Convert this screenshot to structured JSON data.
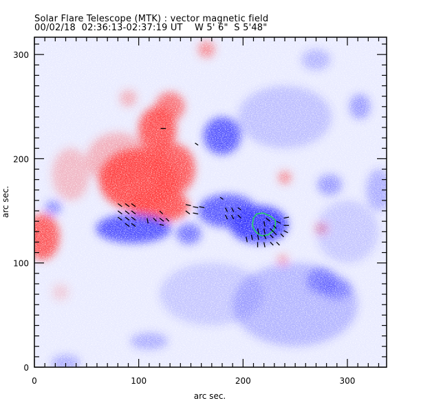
{
  "header": {
    "title": "Solar Flare Telescope (MTK) : vector magnetic field",
    "subtitle": "00/02/18  02:36:13-02:37:19 UT    W 5' 6\"  S 5'48\""
  },
  "colors": {
    "positive": "#ff4040",
    "negative": "#3a3aff",
    "contour": "#22dd55",
    "axes": "#000000",
    "background": "#ffffff"
  },
  "chart_data": {
    "type": "heatmap",
    "title": "Solar Flare Telescope (MTK) : vector magnetic field",
    "subtitle": "00/02/18  02:36:13-02:37:19 UT    W 5' 6\"  S 5'48\"",
    "xlabel": "arc sec.",
    "ylabel": "arc sec.",
    "xlim": [
      0,
      337.6
    ],
    "ylim": [
      0,
      316.6
    ],
    "xticks": [
      0,
      100,
      200,
      300
    ],
    "yticks": [
      0,
      100,
      200,
      300
    ],
    "xtick_labels": [
      "0",
      "100",
      "200",
      "300"
    ],
    "ytick_labels": [
      "0",
      "100",
      "200",
      "300"
    ],
    "minor_tick_step": 10,
    "grid": false,
    "legend": "none",
    "polarity_regions": [
      {
        "polarity": "positive",
        "x": 100,
        "y": 180,
        "rx": 38,
        "ry": 30,
        "strength": 0.95
      },
      {
        "polarity": "positive",
        "x": 120,
        "y": 155,
        "rx": 28,
        "ry": 16,
        "strength": 0.9
      },
      {
        "polarity": "positive",
        "x": 132,
        "y": 190,
        "rx": 22,
        "ry": 25,
        "strength": 0.85
      },
      {
        "polarity": "positive",
        "x": 118,
        "y": 228,
        "rx": 18,
        "ry": 22,
        "strength": 0.9
      },
      {
        "polarity": "positive",
        "x": 130,
        "y": 250,
        "rx": 14,
        "ry": 14,
        "strength": 0.7
      },
      {
        "polarity": "positive",
        "x": 80,
        "y": 200,
        "rx": 30,
        "ry": 25,
        "strength": 0.35
      },
      {
        "polarity": "positive",
        "x": 8,
        "y": 125,
        "rx": 16,
        "ry": 22,
        "strength": 0.85
      },
      {
        "polarity": "positive",
        "x": 35,
        "y": 185,
        "rx": 18,
        "ry": 25,
        "strength": 0.3
      },
      {
        "polarity": "positive",
        "x": 165,
        "y": 305,
        "rx": 8,
        "ry": 8,
        "strength": 0.55
      },
      {
        "polarity": "positive",
        "x": 90,
        "y": 258,
        "rx": 8,
        "ry": 8,
        "strength": 0.35
      },
      {
        "polarity": "positive",
        "x": 240,
        "y": 182,
        "rx": 6,
        "ry": 6,
        "strength": 0.6
      },
      {
        "polarity": "positive",
        "x": 275,
        "y": 133,
        "rx": 6,
        "ry": 5,
        "strength": 0.55
      },
      {
        "polarity": "positive",
        "x": 238,
        "y": 103,
        "rx": 5,
        "ry": 5,
        "strength": 0.45
      },
      {
        "polarity": "positive",
        "x": 25,
        "y": 72,
        "rx": 8,
        "ry": 8,
        "strength": 0.2
      },
      {
        "polarity": "negative",
        "x": 215,
        "y": 137,
        "rx": 28,
        "ry": 18,
        "strength": 0.98
      },
      {
        "polarity": "negative",
        "x": 185,
        "y": 150,
        "rx": 28,
        "ry": 16,
        "strength": 0.8
      },
      {
        "polarity": "negative",
        "x": 180,
        "y": 222,
        "rx": 18,
        "ry": 18,
        "strength": 0.8
      },
      {
        "polarity": "negative",
        "x": 95,
        "y": 133,
        "rx": 36,
        "ry": 14,
        "strength": 0.85
      },
      {
        "polarity": "negative",
        "x": 148,
        "y": 128,
        "rx": 12,
        "ry": 10,
        "strength": 0.65
      },
      {
        "polarity": "negative",
        "x": 18,
        "y": 153,
        "rx": 8,
        "ry": 7,
        "strength": 0.5
      },
      {
        "polarity": "negative",
        "x": 283,
        "y": 175,
        "rx": 12,
        "ry": 10,
        "strength": 0.45
      },
      {
        "polarity": "negative",
        "x": 312,
        "y": 250,
        "rx": 10,
        "ry": 12,
        "strength": 0.45
      },
      {
        "polarity": "negative",
        "x": 275,
        "y": 83,
        "rx": 14,
        "ry": 12,
        "strength": 0.5
      },
      {
        "polarity": "negative",
        "x": 290,
        "y": 75,
        "rx": 14,
        "ry": 10,
        "strength": 0.45
      },
      {
        "polarity": "negative",
        "x": 240,
        "y": 240,
        "rx": 45,
        "ry": 30,
        "strength": 0.25
      },
      {
        "polarity": "negative",
        "x": 250,
        "y": 60,
        "rx": 60,
        "ry": 40,
        "strength": 0.3
      },
      {
        "polarity": "negative",
        "x": 170,
        "y": 70,
        "rx": 50,
        "ry": 30,
        "strength": 0.2
      },
      {
        "polarity": "negative",
        "x": 110,
        "y": 25,
        "rx": 18,
        "ry": 8,
        "strength": 0.35
      },
      {
        "polarity": "negative",
        "x": 30,
        "y": 4,
        "rx": 14,
        "ry": 8,
        "strength": 0.35
      },
      {
        "polarity": "negative",
        "x": 270,
        "y": 295,
        "rx": 14,
        "ry": 10,
        "strength": 0.3
      },
      {
        "polarity": "negative",
        "x": 330,
        "y": 170,
        "rx": 12,
        "ry": 20,
        "strength": 0.35
      },
      {
        "polarity": "negative",
        "x": 300,
        "y": 130,
        "rx": 30,
        "ry": 30,
        "strength": 0.2
      }
    ],
    "contour": [
      [
        209,
        137
      ],
      [
        210,
        143
      ],
      [
        213,
        147
      ],
      [
        219,
        148
      ],
      [
        226,
        145
      ],
      [
        231,
        141
      ],
      [
        231,
        136
      ],
      [
        229,
        131
      ],
      [
        224,
        127
      ],
      [
        218,
        126
      ],
      [
        213,
        129
      ],
      [
        210,
        133
      ],
      [
        209,
        137
      ]
    ],
    "vectors": [
      {
        "x": 80,
        "y": 157,
        "dx": 4,
        "dy": -3
      },
      {
        "x": 87,
        "y": 157,
        "dx": 4,
        "dy": -3
      },
      {
        "x": 93,
        "y": 157,
        "dx": 4,
        "dy": -3
      },
      {
        "x": 80,
        "y": 150,
        "dx": 4,
        "dy": -3
      },
      {
        "x": 87,
        "y": 150,
        "dx": 4,
        "dy": -3
      },
      {
        "x": 93,
        "y": 150,
        "dx": 4,
        "dy": -3
      },
      {
        "x": 80,
        "y": 144,
        "dx": 4,
        "dy": -3
      },
      {
        "x": 87,
        "y": 144,
        "dx": 4,
        "dy": -3
      },
      {
        "x": 93,
        "y": 144,
        "dx": 4,
        "dy": -3
      },
      {
        "x": 87,
        "y": 138,
        "dx": 4,
        "dy": -3
      },
      {
        "x": 93,
        "y": 138,
        "dx": 4,
        "dy": -3
      },
      {
        "x": 120,
        "y": 150,
        "dx": 3,
        "dy": -3
      },
      {
        "x": 108,
        "y": 143,
        "dx": 1,
        "dy": -5
      },
      {
        "x": 114,
        "y": 143,
        "dx": 3,
        "dy": -3
      },
      {
        "x": 120,
        "y": 143,
        "dx": 4,
        "dy": -3
      },
      {
        "x": 126,
        "y": 143,
        "dx": 3,
        "dy": -3
      },
      {
        "x": 120,
        "y": 137,
        "dx": 4,
        "dy": -1
      },
      {
        "x": 145,
        "y": 156,
        "dx": 5,
        "dy": -1
      },
      {
        "x": 152,
        "y": 154,
        "dx": 5,
        "dy": -1
      },
      {
        "x": 158,
        "y": 154,
        "dx": 5,
        "dy": -1
      },
      {
        "x": 145,
        "y": 150,
        "dx": 4,
        "dy": -3
      },
      {
        "x": 152,
        "y": 148,
        "dx": 5,
        "dy": -1
      },
      {
        "x": 121,
        "y": 229,
        "dx": 5,
        "dy": 0
      },
      {
        "x": 154,
        "y": 215,
        "dx": 3,
        "dy": -2
      },
      {
        "x": 178,
        "y": 163,
        "dx": 3,
        "dy": -2
      },
      {
        "x": 183,
        "y": 153,
        "dx": 2,
        "dy": -4
      },
      {
        "x": 189,
        "y": 153,
        "dx": 2,
        "dy": -4
      },
      {
        "x": 195,
        "y": 153,
        "dx": 3,
        "dy": -2
      },
      {
        "x": 183,
        "y": 146,
        "dx": 2,
        "dy": -4
      },
      {
        "x": 189,
        "y": 146,
        "dx": 2,
        "dy": -4
      },
      {
        "x": 195,
        "y": 146,
        "dx": 3,
        "dy": -3
      },
      {
        "x": 220,
        "y": 140,
        "dx": 1,
        "dy": -5
      },
      {
        "x": 226,
        "y": 140,
        "dx": -4,
        "dy": 3
      },
      {
        "x": 232,
        "y": 140,
        "dx": 4,
        "dy": -2
      },
      {
        "x": 239,
        "y": 143,
        "dx": 5,
        "dy": 1
      },
      {
        "x": 239,
        "y": 136,
        "dx": 5,
        "dy": 0
      },
      {
        "x": 214,
        "y": 133,
        "dx": 1,
        "dy": -5
      },
      {
        "x": 220,
        "y": 133,
        "dx": 1,
        "dy": -5
      },
      {
        "x": 226,
        "y": 133,
        "dx": 3,
        "dy": -3
      },
      {
        "x": 232,
        "y": 133,
        "dx": -3,
        "dy": 3
      },
      {
        "x": 239,
        "y": 131,
        "dx": 4,
        "dy": -2
      },
      {
        "x": 208,
        "y": 127,
        "dx": 1,
        "dy": -5
      },
      {
        "x": 214,
        "y": 127,
        "dx": 1,
        "dy": -5
      },
      {
        "x": 220,
        "y": 127,
        "dx": 2,
        "dy": -4
      },
      {
        "x": 226,
        "y": 127,
        "dx": 3,
        "dy": -3
      },
      {
        "x": 232,
        "y": 127,
        "dx": -3,
        "dy": 3
      },
      {
        "x": 239,
        "y": 125,
        "dx": -3,
        "dy": 3
      },
      {
        "x": 203,
        "y": 125,
        "dx": 1,
        "dy": -5
      },
      {
        "x": 214,
        "y": 120,
        "dx": 0,
        "dy": -5
      },
      {
        "x": 220,
        "y": 120,
        "dx": 1,
        "dy": -5
      },
      {
        "x": 226,
        "y": 120,
        "dx": 3,
        "dy": -3
      },
      {
        "x": 232,
        "y": 120,
        "dx": 3,
        "dy": -3
      }
    ]
  }
}
